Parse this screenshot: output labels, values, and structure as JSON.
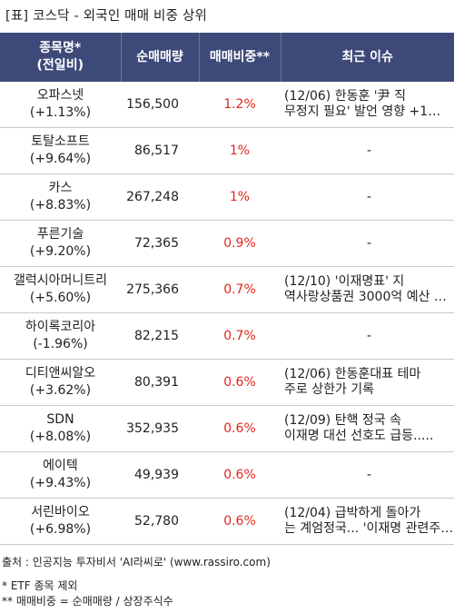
{
  "title": "[표] 코스닥 - 외국인 매매 비중 상위",
  "headers": {
    "name": "종목명*",
    "name_sub": "(전일비)",
    "volume": "순매매량",
    "ratio": "매매비중**",
    "issue": "최근 이슈"
  },
  "rows": [
    {
      "name": "오파스넷",
      "change": "(+1.13%)",
      "volume": "156,500",
      "ratio": "1.2%",
      "issue": "(12/06) 한동훈 '尹 직\n무정지 필요' 발언 영향 +1…"
    },
    {
      "name": "토탈소프트",
      "change": "(+9.64%)",
      "volume": "86,517",
      "ratio": "1%",
      "issue": "-"
    },
    {
      "name": "카스",
      "change": "(+8.83%)",
      "volume": "267,248",
      "ratio": "1%",
      "issue": "-"
    },
    {
      "name": "푸른기술",
      "change": "(+9.20%)",
      "volume": "72,365",
      "ratio": "0.9%",
      "issue": "-"
    },
    {
      "name": "갤럭시아머니트리",
      "change": "(+5.60%)",
      "volume": "275,366",
      "ratio": "0.7%",
      "issue": "(12/10) '이재명표' 지\n역사랑상품권 3000억 예산 …"
    },
    {
      "name": "하이록코리아",
      "change": "(-1.96%)",
      "volume": "82,215",
      "ratio": "0.7%",
      "issue": "-"
    },
    {
      "name": "디티앤씨알오",
      "change": "(+3.62%)",
      "volume": "80,391",
      "ratio": "0.6%",
      "issue": "(12/06) 한동훈대표 테마\n주로 상한가 기록"
    },
    {
      "name": "SDN",
      "change": "(+8.08%)",
      "volume": "352,935",
      "ratio": "0.6%",
      "issue": "(12/09) 탄핵 정국 속\n이재명 대선 선호도 급등....."
    },
    {
      "name": "에이텍",
      "change": "(+9.43%)",
      "volume": "49,939",
      "ratio": "0.6%",
      "issue": "-"
    },
    {
      "name": "서린바이오",
      "change": "(+6.98%)",
      "volume": "52,780",
      "ratio": "0.6%",
      "issue": "(12/04) 급박하게 돌아가\n는 계엄정국... '이재명 관련주…"
    }
  ],
  "footer": {
    "source": "출처 : 인공지능 투자비서 'AI라씨로' (www.rassiro.com)",
    "note1": "* ETF 종목 제외",
    "note2": "** 매매비중 = 순매매량 / 상장주식수"
  },
  "colors": {
    "header_bg": "#3d4a79",
    "ratio_text": "#e0261b",
    "row_border": "#c9c9c9"
  }
}
